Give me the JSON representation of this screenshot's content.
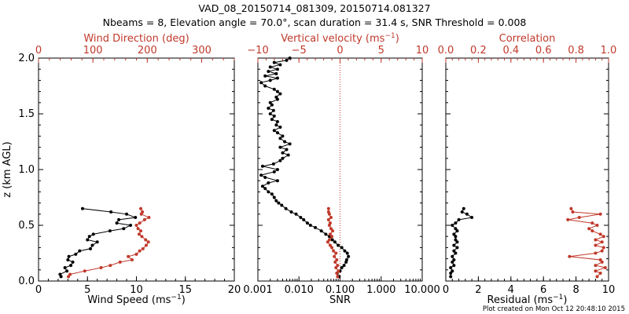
{
  "header": {
    "line1": "VAD_08_20150714_081309, 20150714.081327",
    "line2": "Nbeams = 8, Elevation angle = 70.0°, scan duration = 31.4 s, SNR Threshold = 0.008"
  },
  "footer": {
    "created": "Plot created on Mon Oct 12 20:48:10 2015"
  },
  "colors": {
    "black": "#000000",
    "red": "#c0392b",
    "panel_border": "#000000"
  },
  "chart_data": [
    {
      "type": "line",
      "panel": "left",
      "ylabel": "z (km AGL)",
      "ylim": [
        0,
        2
      ],
      "yticks": [
        0,
        0.5,
        1,
        1.5,
        2
      ],
      "yticklabels": [
        "0.0",
        "0.5",
        "1.0",
        "1.5",
        "2.0"
      ],
      "xlabel_prefix": "Wind Speed (ms",
      "xlabel_exp": "−1",
      "xlabel_suffix": ")",
      "xlim": [
        0,
        20
      ],
      "xticks": [
        0,
        5,
        10,
        15,
        20
      ],
      "xticklabels": [
        "0",
        "5",
        "10",
        "15",
        "20"
      ],
      "top_label": "Wind Direction (deg)",
      "top_xlim": [
        0,
        360
      ],
      "top_ticks": [
        0,
        100,
        200,
        300
      ],
      "top_ticklabels": [
        "0",
        "100",
        "200",
        "300"
      ],
      "series": [
        {
          "axis": "bottom",
          "color": "#000000",
          "values": [
            {
              "x": 2.3,
              "y": 0.04
            },
            {
              "x": 2.2,
              "y": 0.06
            },
            {
              "x": 2.9,
              "y": 0.09
            },
            {
              "x": 2.7,
              "y": 0.12
            },
            {
              "x": 3.3,
              "y": 0.14
            },
            {
              "x": 3.5,
              "y": 0.17
            },
            {
              "x": 3.0,
              "y": 0.19
            },
            {
              "x": 3.1,
              "y": 0.22
            },
            {
              "x": 3.8,
              "y": 0.24
            },
            {
              "x": 4.2,
              "y": 0.27
            },
            {
              "x": 5.3,
              "y": 0.29
            },
            {
              "x": 5.5,
              "y": 0.32
            },
            {
              "x": 6.0,
              "y": 0.35
            },
            {
              "x": 5.0,
              "y": 0.37
            },
            {
              "x": 5.2,
              "y": 0.4
            },
            {
              "x": 5.6,
              "y": 0.42
            },
            {
              "x": 7.3,
              "y": 0.45
            },
            {
              "x": 8.7,
              "y": 0.47
            },
            {
              "x": 9.4,
              "y": 0.5
            },
            {
              "x": 8.0,
              "y": 0.52
            },
            {
              "x": 8.2,
              "y": 0.55
            },
            {
              "x": 9.9,
              "y": 0.57
            },
            {
              "x": 9.0,
              "y": 0.6
            },
            {
              "x": 7.4,
              "y": 0.62
            },
            {
              "x": 4.5,
              "y": 0.65
            }
          ]
        },
        {
          "axis": "top",
          "color": "#c0392b",
          "values": [
            {
              "x": 55,
              "y": 0.04
            },
            {
              "x": 58,
              "y": 0.06
            },
            {
              "x": 85,
              "y": 0.09
            },
            {
              "x": 115,
              "y": 0.12
            },
            {
              "x": 132,
              "y": 0.14
            },
            {
              "x": 150,
              "y": 0.17
            },
            {
              "x": 172,
              "y": 0.19
            },
            {
              "x": 165,
              "y": 0.22
            },
            {
              "x": 180,
              "y": 0.24
            },
            {
              "x": 186,
              "y": 0.27
            },
            {
              "x": 192,
              "y": 0.29
            },
            {
              "x": 198,
              "y": 0.32
            },
            {
              "x": 202,
              "y": 0.35
            },
            {
              "x": 197,
              "y": 0.37
            },
            {
              "x": 190,
              "y": 0.4
            },
            {
              "x": 185,
              "y": 0.42
            },
            {
              "x": 188,
              "y": 0.45
            },
            {
              "x": 183,
              "y": 0.47
            },
            {
              "x": 180,
              "y": 0.5
            },
            {
              "x": 186,
              "y": 0.52
            },
            {
              "x": 195,
              "y": 0.55
            },
            {
              "x": 203,
              "y": 0.57
            },
            {
              "x": 189,
              "y": 0.6
            },
            {
              "x": 191,
              "y": 0.62
            },
            {
              "x": 188,
              "y": 0.65
            }
          ]
        }
      ]
    },
    {
      "type": "line",
      "panel": "middle",
      "xscale": "log",
      "xlabel_prefix": "SNR",
      "xlabel_exp": "",
      "xlabel_suffix": "",
      "xlim": [
        0.001,
        10
      ],
      "xticks": [
        0.001,
        0.01,
        0.1,
        1,
        10
      ],
      "xticklabels": [
        "0.001",
        "0.010",
        "0.100",
        "1.000",
        "10.000"
      ],
      "top_label": "Vertical velocity (ms",
      "top_label_exp": "−1",
      "top_label_suffix": ")",
      "top_xlim": [
        -10,
        10
      ],
      "top_ticks": [
        -10,
        -5,
        0,
        5,
        10
      ],
      "top_ticklabels": [
        "−10",
        "−5",
        "0",
        "5",
        "10"
      ],
      "reference_line": {
        "axis": "top",
        "x": 0,
        "style": "dotted"
      },
      "series": [
        {
          "axis": "bottom",
          "color": "#000000",
          "values": [
            {
              "x": 0.095,
              "y": 0.04
            },
            {
              "x": 0.085,
              "y": 0.07
            },
            {
              "x": 0.1,
              "y": 0.09
            },
            {
              "x": 0.11,
              "y": 0.12
            },
            {
              "x": 0.125,
              "y": 0.14
            },
            {
              "x": 0.14,
              "y": 0.17
            },
            {
              "x": 0.145,
              "y": 0.19
            },
            {
              "x": 0.16,
              "y": 0.22
            },
            {
              "x": 0.15,
              "y": 0.25
            },
            {
              "x": 0.13,
              "y": 0.27
            },
            {
              "x": 0.11,
              "y": 0.3
            },
            {
              "x": 0.09,
              "y": 0.32
            },
            {
              "x": 0.075,
              "y": 0.35
            },
            {
              "x": 0.065,
              "y": 0.37
            },
            {
              "x": 0.055,
              "y": 0.4
            },
            {
              "x": 0.045,
              "y": 0.42
            },
            {
              "x": 0.035,
              "y": 0.45
            },
            {
              "x": 0.025,
              "y": 0.48
            },
            {
              "x": 0.019,
              "y": 0.5
            },
            {
              "x": 0.016,
              "y": 0.52
            },
            {
              "x": 0.013,
              "y": 0.55
            },
            {
              "x": 0.011,
              "y": 0.57
            },
            {
              "x": 0.0085,
              "y": 0.6
            },
            {
              "x": 0.0065,
              "y": 0.62
            },
            {
              "x": 0.0048,
              "y": 0.65
            },
            {
              "x": 0.0038,
              "y": 0.68
            },
            {
              "x": 0.0032,
              "y": 0.7
            },
            {
              "x": 0.0028,
              "y": 0.72
            },
            {
              "x": 0.0025,
              "y": 0.75
            },
            {
              "x": 0.0022,
              "y": 0.78
            },
            {
              "x": 0.0018,
              "y": 0.8
            },
            {
              "x": 0.0015,
              "y": 0.83
            },
            {
              "x": 0.0013,
              "y": 0.85
            },
            {
              "x": 0.0018,
              "y": 0.88
            },
            {
              "x": 0.003,
              "y": 0.9
            },
            {
              "x": 0.0015,
              "y": 0.93
            },
            {
              "x": 0.0012,
              "y": 0.95
            },
            {
              "x": 0.0025,
              "y": 0.98
            },
            {
              "x": 0.003,
              "y": 1.0
            },
            {
              "x": 0.0013,
              "y": 1.03
            },
            {
              "x": 0.0024,
              "y": 1.05
            },
            {
              "x": 0.0035,
              "y": 1.08
            },
            {
              "x": 0.004,
              "y": 1.1
            },
            {
              "x": 0.0055,
              "y": 1.13
            },
            {
              "x": 0.004,
              "y": 1.15
            },
            {
              "x": 0.005,
              "y": 1.18
            },
            {
              "x": 0.0035,
              "y": 1.2
            },
            {
              "x": 0.006,
              "y": 1.23
            },
            {
              "x": 0.0045,
              "y": 1.25
            },
            {
              "x": 0.0035,
              "y": 1.28
            },
            {
              "x": 0.004,
              "y": 1.3
            },
            {
              "x": 0.003,
              "y": 1.33
            },
            {
              "x": 0.0025,
              "y": 1.35
            },
            {
              "x": 0.0035,
              "y": 1.38
            },
            {
              "x": 0.0028,
              "y": 1.4
            },
            {
              "x": 0.003,
              "y": 1.43
            },
            {
              "x": 0.0022,
              "y": 1.45
            },
            {
              "x": 0.0025,
              "y": 1.48
            },
            {
              "x": 0.002,
              "y": 1.5
            },
            {
              "x": 0.0024,
              "y": 1.53
            },
            {
              "x": 0.0018,
              "y": 1.55
            },
            {
              "x": 0.0022,
              "y": 1.58
            },
            {
              "x": 0.002,
              "y": 1.6
            },
            {
              "x": 0.003,
              "y": 1.63
            },
            {
              "x": 0.0028,
              "y": 1.65
            },
            {
              "x": 0.0035,
              "y": 1.68
            },
            {
              "x": 0.003,
              "y": 1.7
            },
            {
              "x": 0.0025,
              "y": 1.72
            },
            {
              "x": 0.0015,
              "y": 1.75
            },
            {
              "x": 0.0012,
              "y": 1.78
            },
            {
              "x": 0.002,
              "y": 1.8
            },
            {
              "x": 0.003,
              "y": 1.82
            },
            {
              "x": 0.0015,
              "y": 1.84
            },
            {
              "x": 0.0028,
              "y": 1.86
            },
            {
              "x": 0.0018,
              "y": 1.88
            },
            {
              "x": 0.003,
              "y": 1.9
            },
            {
              "x": 0.002,
              "y": 1.92
            },
            {
              "x": 0.0035,
              "y": 1.94
            },
            {
              "x": 0.0025,
              "y": 1.96
            },
            {
              "x": 0.005,
              "y": 1.98
            },
            {
              "x": 0.006,
              "y": 2.0
            }
          ]
        },
        {
          "axis": "top",
          "color": "#c0392b",
          "values": [
            {
              "x": -0.3,
              "y": 0.04
            },
            {
              "x": -0.4,
              "y": 0.07
            },
            {
              "x": -0.2,
              "y": 0.09
            },
            {
              "x": -0.5,
              "y": 0.12
            },
            {
              "x": -0.3,
              "y": 0.14
            },
            {
              "x": -0.6,
              "y": 0.17
            },
            {
              "x": -0.4,
              "y": 0.19
            },
            {
              "x": -0.7,
              "y": 0.22
            },
            {
              "x": -0.5,
              "y": 0.25
            },
            {
              "x": -0.8,
              "y": 0.27
            },
            {
              "x": -1.0,
              "y": 0.3
            },
            {
              "x": -1.2,
              "y": 0.32
            },
            {
              "x": -1.5,
              "y": 0.35
            },
            {
              "x": -1.3,
              "y": 0.37
            },
            {
              "x": -1.0,
              "y": 0.4
            },
            {
              "x": -1.2,
              "y": 0.42
            },
            {
              "x": -0.9,
              "y": 0.45
            },
            {
              "x": -1.1,
              "y": 0.47
            },
            {
              "x": -1.3,
              "y": 0.5
            },
            {
              "x": -1.2,
              "y": 0.52
            },
            {
              "x": -1.4,
              "y": 0.55
            },
            {
              "x": -1.1,
              "y": 0.57
            },
            {
              "x": -1.3,
              "y": 0.6
            },
            {
              "x": -1.4,
              "y": 0.62
            },
            {
              "x": -1.4,
              "y": 0.65
            }
          ]
        }
      ]
    },
    {
      "type": "line",
      "panel": "right",
      "xlabel_prefix": "Residual (ms",
      "xlabel_exp": "−1",
      "xlabel_suffix": ")",
      "xlim": [
        0,
        10
      ],
      "xticks": [
        0,
        2,
        4,
        6,
        8,
        10
      ],
      "xticklabels": [
        "0",
        "2",
        "4",
        "6",
        "8",
        "10"
      ],
      "top_label": "Correlation",
      "top_xlim": [
        0,
        1
      ],
      "top_ticks": [
        0,
        0.2,
        0.4,
        0.6,
        0.8,
        1.0
      ],
      "top_ticklabels": [
        "0.0",
        "0.2",
        "0.4",
        "0.6",
        "0.8",
        "1.0"
      ],
      "series": [
        {
          "axis": "bottom",
          "color": "#000000",
          "values": [
            {
              "x": 0.3,
              "y": 0.04
            },
            {
              "x": 0.3,
              "y": 0.07
            },
            {
              "x": 0.4,
              "y": 0.09
            },
            {
              "x": 0.3,
              "y": 0.12
            },
            {
              "x": 0.5,
              "y": 0.14
            },
            {
              "x": 0.4,
              "y": 0.17
            },
            {
              "x": 0.5,
              "y": 0.19
            },
            {
              "x": 0.4,
              "y": 0.22
            },
            {
              "x": 0.6,
              "y": 0.25
            },
            {
              "x": 0.5,
              "y": 0.27
            },
            {
              "x": 0.7,
              "y": 0.3
            },
            {
              "x": 0.5,
              "y": 0.32
            },
            {
              "x": 0.7,
              "y": 0.35
            },
            {
              "x": 0.6,
              "y": 0.37
            },
            {
              "x": 0.6,
              "y": 0.4
            },
            {
              "x": 0.5,
              "y": 0.42
            },
            {
              "x": 0.7,
              "y": 0.45
            },
            {
              "x": 0.6,
              "y": 0.47
            },
            {
              "x": 0.4,
              "y": 0.5
            },
            {
              "x": 0.6,
              "y": 0.52
            },
            {
              "x": 0.8,
              "y": 0.55
            },
            {
              "x": 1.6,
              "y": 0.57
            },
            {
              "x": 1.3,
              "y": 0.6
            },
            {
              "x": 1.0,
              "y": 0.62
            },
            {
              "x": 1.1,
              "y": 0.65
            }
          ]
        },
        {
          "axis": "top",
          "color": "#c0392b",
          "values": [
            {
              "x": 0.93,
              "y": 0.04
            },
            {
              "x": 0.95,
              "y": 0.07
            },
            {
              "x": 0.92,
              "y": 0.09
            },
            {
              "x": 0.98,
              "y": 0.12
            },
            {
              "x": 0.92,
              "y": 0.14
            },
            {
              "x": 0.96,
              "y": 0.17
            },
            {
              "x": 0.95,
              "y": 0.19
            },
            {
              "x": 0.76,
              "y": 0.22
            },
            {
              "x": 0.92,
              "y": 0.25
            },
            {
              "x": 0.96,
              "y": 0.27
            },
            {
              "x": 0.97,
              "y": 0.3
            },
            {
              "x": 0.92,
              "y": 0.32
            },
            {
              "x": 0.96,
              "y": 0.35
            },
            {
              "x": 0.92,
              "y": 0.37
            },
            {
              "x": 0.97,
              "y": 0.4
            },
            {
              "x": 0.95,
              "y": 0.42
            },
            {
              "x": 0.9,
              "y": 0.45
            },
            {
              "x": 0.88,
              "y": 0.47
            },
            {
              "x": 0.93,
              "y": 0.5
            },
            {
              "x": 0.9,
              "y": 0.52
            },
            {
              "x": 0.75,
              "y": 0.55
            },
            {
              "x": 0.82,
              "y": 0.57
            },
            {
              "x": 0.95,
              "y": 0.6
            },
            {
              "x": 0.78,
              "y": 0.62
            },
            {
              "x": 0.77,
              "y": 0.65
            }
          ]
        }
      ]
    }
  ]
}
